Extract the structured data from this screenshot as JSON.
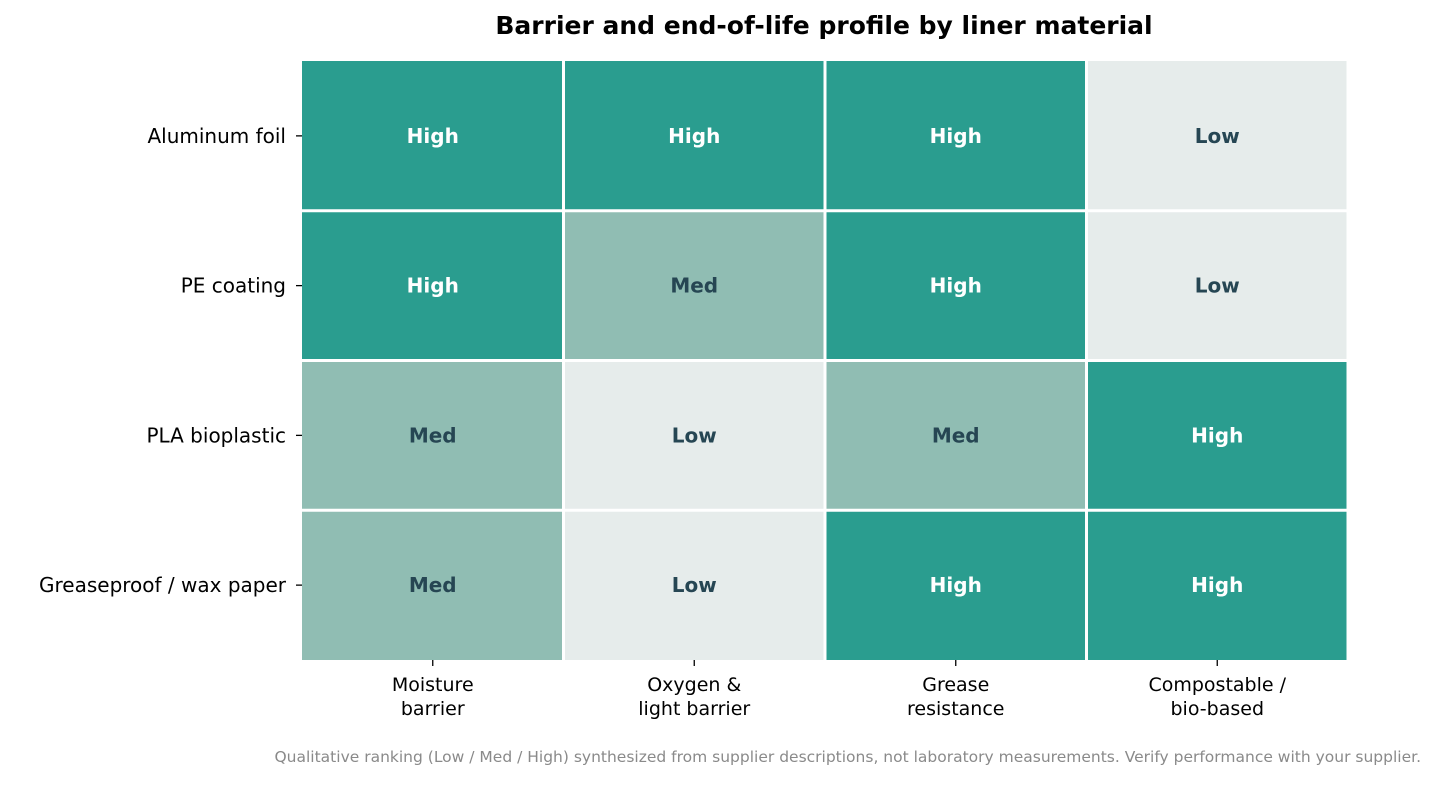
{
  "chart_data": {
    "type": "heatmap",
    "title": "Barrier and end-of-life profile by liner material",
    "rows": [
      "Aluminum foil",
      "PE coating",
      "PLA bioplastic",
      "Greaseproof / wax paper"
    ],
    "columns": [
      [
        "Moisture",
        "barrier"
      ],
      [
        "Oxygen &",
        "light barrier"
      ],
      [
        "Grease",
        "resistance"
      ],
      [
        "Compostable /",
        "bio-based"
      ]
    ],
    "values": [
      [
        "High",
        "High",
        "High",
        "Low"
      ],
      [
        "High",
        "Med",
        "High",
        "Low"
      ],
      [
        "Med",
        "Low",
        "Med",
        "High"
      ],
      [
        "Med",
        "Low",
        "High",
        "High"
      ]
    ],
    "level_colors": {
      "High": "#2a9d8f",
      "Med": "#90bdb3",
      "Low": "#e6eceb"
    },
    "text_colors": {
      "High": "#ffffff",
      "Med": "#264653",
      "Low": "#264653"
    },
    "footnote": "Qualitative ranking (Low / Med / High) synthesized from supplier descriptions, not laboratory measurements. Verify performance with your supplier."
  }
}
